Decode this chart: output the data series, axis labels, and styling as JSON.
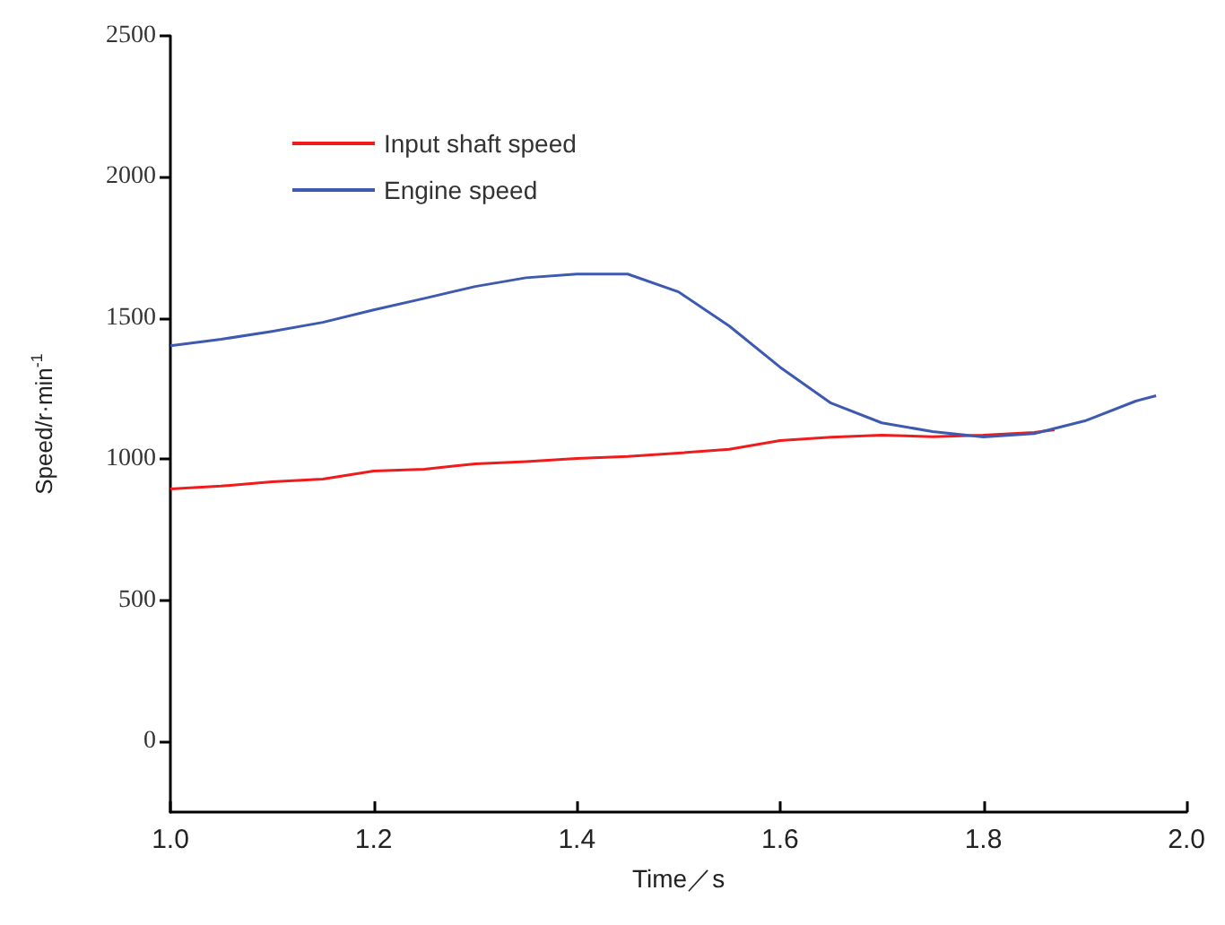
{
  "chart_data": {
    "type": "line",
    "xlabel": "Time／s",
    "ylabel": "Speed/r·min$^{-1}$",
    "xlim": [
      1.0,
      2.0
    ],
    "xticks": [
      {
        "value": 1.0,
        "label": "1.0"
      },
      {
        "value": 1.2,
        "label": "1.2"
      },
      {
        "value": 1.4,
        "label": "1.4"
      },
      {
        "value": 1.6,
        "label": "1.6"
      },
      {
        "value": 1.8,
        "label": "1.8"
      },
      {
        "value": 2.0,
        "label": "2.0"
      }
    ],
    "ylim": [
      -250,
      2500
    ],
    "yticks": [
      0,
      500,
      1000,
      1500,
      2000,
      2500
    ],
    "legend": "top left",
    "marker": "none",
    "line_style": "solid",
    "series": [
      {
        "name": "Input shaft speed",
        "color": "#ee1c1c",
        "x": [
          1.0,
          1.05,
          1.1,
          1.15,
          1.2,
          1.25,
          1.3,
          1.35,
          1.4,
          1.45,
          1.5,
          1.55,
          1.6,
          1.65,
          1.7,
          1.75,
          1.8,
          1.85,
          1.87
        ],
        "values": [
          895,
          905,
          920,
          930,
          958,
          965,
          984,
          992,
          1003,
          1010,
          1022,
          1035,
          1066,
          1078,
          1085,
          1080,
          1085,
          1095,
          1104
        ]
      },
      {
        "name": "Engine speed",
        "color": "#3d5ab0",
        "x": [
          1.0,
          1.05,
          1.1,
          1.15,
          1.2,
          1.25,
          1.3,
          1.35,
          1.4,
          1.45,
          1.5,
          1.55,
          1.6,
          1.65,
          1.7,
          1.75,
          1.8,
          1.85,
          1.9,
          1.95,
          1.97
        ],
        "values": [
          1402,
          1425,
          1453,
          1485,
          1529,
          1570,
          1612,
          1643,
          1656,
          1656,
          1593,
          1472,
          1326,
          1199,
          1129,
          1098,
          1079,
          1091,
          1136,
          1206,
          1225
        ]
      }
    ]
  }
}
